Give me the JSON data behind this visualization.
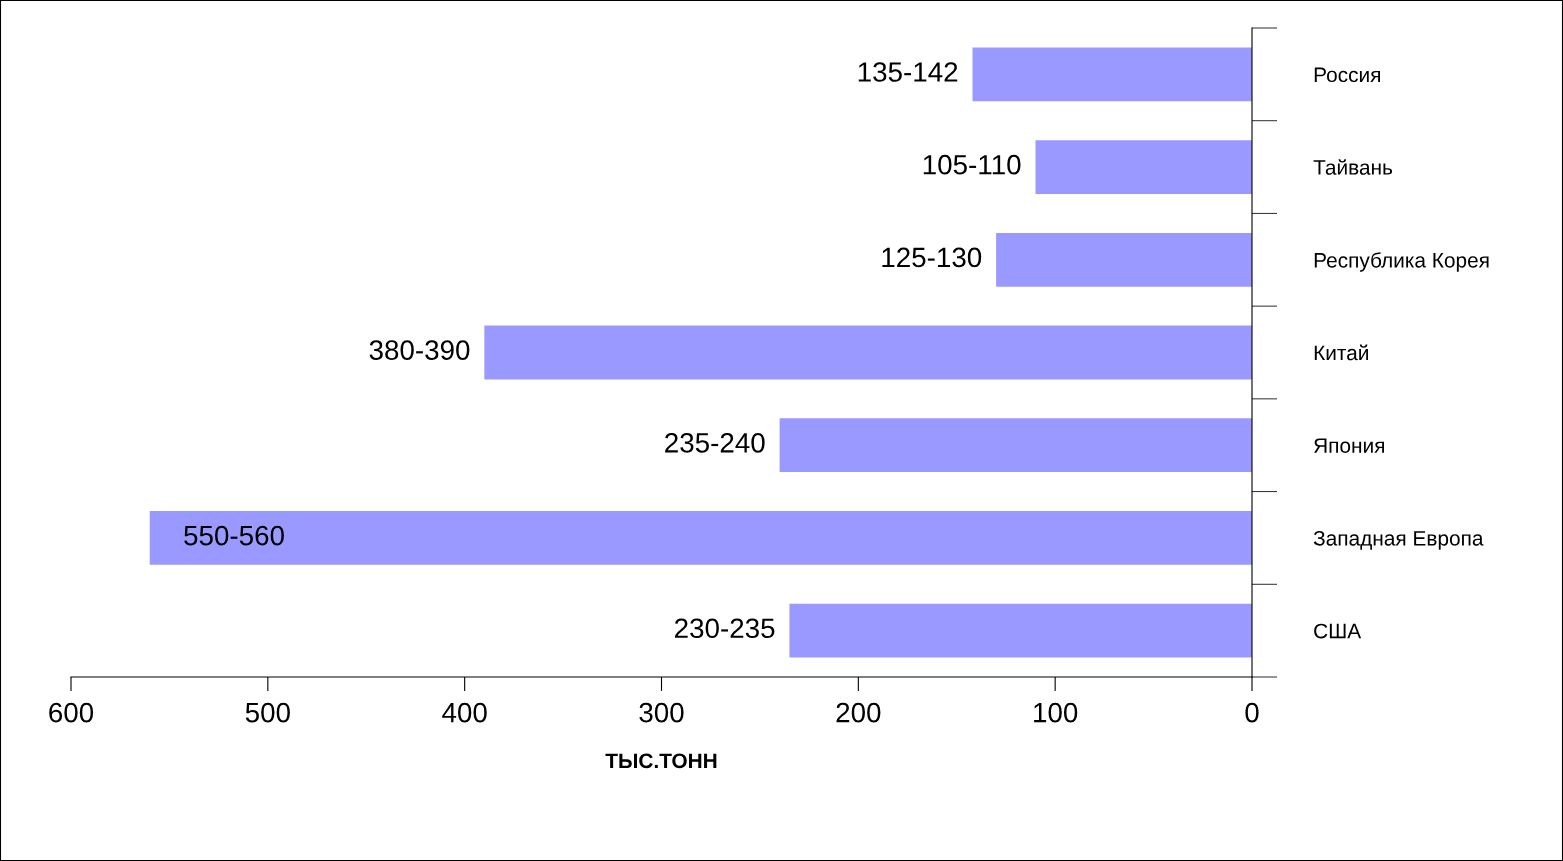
{
  "chart_data": {
    "type": "bar",
    "orientation": "horizontal",
    "xlabel": "ТЫС.ТОНН",
    "categories": [
      "Россия",
      "Тайвань",
      "Республика Корея",
      "Китай",
      "Япония",
      "Западная Европа",
      "США"
    ],
    "values": [
      142,
      110,
      130,
      390,
      240,
      560,
      235
    ],
    "value_labels": [
      "135-142",
      "105-110",
      "125-130",
      "380-390",
      "235-240",
      "550-560",
      "230-235"
    ],
    "color": "#9999ff",
    "xlim": [
      600,
      0
    ],
    "xticks": [
      600,
      500,
      400,
      300,
      200,
      100,
      0
    ],
    "grid": false,
    "legend": false
  }
}
